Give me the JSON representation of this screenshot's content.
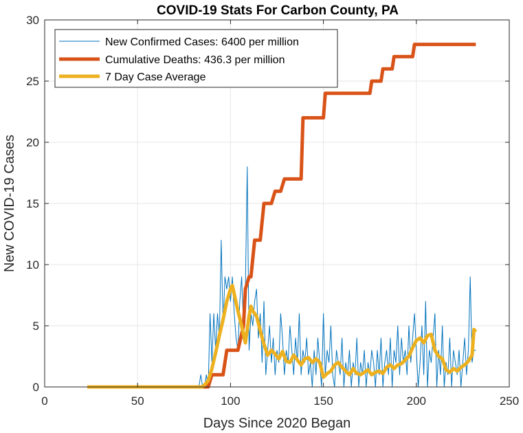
{
  "colors": {
    "new_cases": "#0072BD",
    "cumulative_deaths": "#D95319",
    "seven_day_avg": "#EDB120",
    "grid": "#e6e6e6",
    "axis": "#262626"
  },
  "chart_data": {
    "type": "line",
    "title": "COVID-19 Stats For Carbon County, PA",
    "xlabel": "Days Since 2020 Began",
    "ylabel": "New COVID-19 Cases",
    "xlim": [
      0,
      250
    ],
    "ylim": [
      0,
      30
    ],
    "xticks": [
      0,
      50,
      100,
      150,
      200,
      250
    ],
    "yticks": [
      0,
      5,
      10,
      15,
      20,
      25,
      30
    ],
    "grid": true,
    "legend_position": "top-left",
    "series": [
      {
        "name": "New Confirmed Cases: 6400 per million",
        "key": "new_cases",
        "x": [
          23,
          30,
          40,
          50,
          60,
          70,
          80,
          83,
          84,
          85,
          86,
          87,
          88,
          89,
          90,
          91,
          92,
          93,
          94,
          95,
          96,
          97,
          98,
          99,
          100,
          101,
          102,
          103,
          104,
          105,
          106,
          107,
          108,
          109,
          110,
          111,
          112,
          113,
          114,
          115,
          116,
          117,
          118,
          119,
          120,
          121,
          122,
          123,
          124,
          125,
          126,
          127,
          128,
          129,
          130,
          131,
          132,
          133,
          134,
          135,
          136,
          137,
          138,
          139,
          140,
          141,
          142,
          143,
          144,
          145,
          146,
          147,
          148,
          149,
          150,
          151,
          152,
          153,
          154,
          155,
          156,
          157,
          158,
          159,
          160,
          161,
          162,
          163,
          164,
          165,
          166,
          167,
          168,
          169,
          170,
          171,
          172,
          173,
          174,
          175,
          176,
          177,
          178,
          179,
          180,
          181,
          182,
          183,
          184,
          185,
          186,
          187,
          188,
          189,
          190,
          191,
          192,
          193,
          194,
          195,
          196,
          197,
          198,
          199,
          200,
          201,
          202,
          203,
          204,
          205,
          206,
          207,
          208,
          209,
          210,
          211,
          212,
          213,
          214,
          215,
          216,
          217,
          218,
          219,
          220,
          221,
          222,
          223,
          224,
          225,
          226,
          227,
          228,
          229,
          230,
          231,
          232
        ],
        "y": [
          0,
          0,
          0,
          0,
          0,
          0,
          0,
          0,
          1,
          0,
          0,
          1,
          0,
          6,
          2,
          6,
          3,
          6,
          4,
          12,
          5,
          9,
          8,
          9,
          7,
          9,
          6,
          4,
          3,
          7,
          9,
          5,
          8,
          18,
          3,
          6,
          5,
          7,
          8,
          4,
          6,
          2,
          7,
          1,
          3,
          5,
          2,
          4,
          1,
          3,
          2,
          6,
          4,
          1,
          3,
          2,
          5,
          3,
          1,
          4,
          2,
          6,
          1,
          3,
          2,
          4,
          1,
          2,
          0,
          3,
          1,
          4,
          2,
          0,
          6,
          1,
          3,
          2,
          5,
          1,
          0,
          3,
          2,
          1,
          4,
          0,
          2,
          1,
          3,
          0,
          2,
          1,
          4,
          0,
          2,
          1,
          3,
          0,
          2,
          1,
          3,
          2,
          0,
          3,
          1,
          4,
          0,
          2,
          3,
          1,
          4,
          0,
          3,
          2,
          5,
          1,
          4,
          2,
          3,
          1,
          5,
          2,
          4,
          6,
          3,
          0,
          2,
          5,
          1,
          7,
          0,
          3,
          2,
          4,
          6,
          0,
          3,
          1,
          5,
          0,
          2,
          1,
          4,
          0,
          3,
          2,
          1,
          3,
          0,
          2,
          4,
          1,
          3,
          9,
          2,
          3,
          3
        ]
      },
      {
        "name": "Cumulative Deaths: 436.3 per million",
        "key": "cumulative_deaths",
        "x": [
          23,
          88,
          90,
          96,
          98,
          104,
          107,
          108,
          110,
          111,
          113,
          116,
          118,
          122,
          124,
          127,
          129,
          131,
          133,
          138,
          139,
          150,
          151,
          175,
          176,
          181,
          182,
          187,
          188,
          192,
          193,
          198,
          199,
          232
        ],
        "y": [
          0,
          0,
          1,
          1,
          3,
          3,
          5,
          8,
          9,
          9,
          12,
          12,
          15,
          15,
          16,
          16,
          17,
          17,
          17,
          17,
          22,
          22,
          24,
          24,
          25,
          25,
          26,
          26,
          27,
          27,
          27,
          27,
          28,
          28
        ]
      },
      {
        "name": "7 Day Case Average",
        "key": "seven_day_avg",
        "x": [
          23,
          40,
          60,
          80,
          85,
          88,
          90,
          92,
          94,
          96,
          98,
          100,
          101,
          102,
          104,
          106,
          108,
          110,
          111,
          112,
          114,
          116,
          118,
          120,
          122,
          124,
          126,
          128,
          130,
          132,
          134,
          136,
          138,
          140,
          142,
          144,
          146,
          148,
          150,
          152,
          154,
          156,
          158,
          160,
          162,
          164,
          166,
          168,
          170,
          172,
          174,
          176,
          178,
          180,
          182,
          184,
          186,
          188,
          190,
          192,
          194,
          196,
          198,
          200,
          202,
          204,
          206,
          208,
          210,
          212,
          214,
          216,
          218,
          220,
          222,
          224,
          226,
          228,
          230,
          231,
          232
        ],
        "y": [
          0,
          0,
          0,
          0,
          0,
          0.5,
          1.5,
          2.8,
          4.2,
          5.5,
          7,
          8,
          8.3,
          7.6,
          6.2,
          5,
          3.6,
          5.8,
          6.6,
          6.2,
          5.8,
          4.6,
          3.5,
          2.6,
          3,
          2.7,
          2.3,
          2.9,
          2.1,
          2,
          2.6,
          2.2,
          1.8,
          2.3,
          2.4,
          2,
          2.3,
          2,
          0.8,
          1.1,
          1.3,
          1.8,
          2,
          1.6,
          1.3,
          1,
          1.5,
          1.1,
          1,
          1.2,
          1.4,
          1,
          1.2,
          1.3,
          1.1,
          1.6,
          1.8,
          1.5,
          1.8,
          1.9,
          2.2,
          2.5,
          3.2,
          3.8,
          4,
          3.6,
          4.2,
          4.3,
          3,
          2.5,
          2.3,
          1.4,
          1.2,
          1.5,
          1.3,
          1.6,
          1.8,
          2.1,
          2.6,
          4.7,
          4.5
        ]
      }
    ]
  }
}
